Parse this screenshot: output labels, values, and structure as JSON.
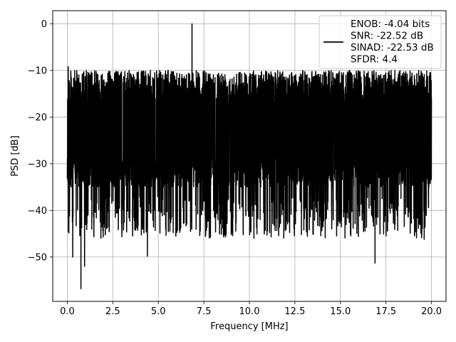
{
  "chart_data": {
    "type": "line",
    "xlabel": "Frequency [MHz]",
    "ylabel": "PSD [dB]",
    "xlim": [
      -0.8,
      20.8
    ],
    "ylim": [
      -59.5,
      2.8
    ],
    "xticks": [
      0.0,
      2.5,
      5.0,
      7.5,
      10.0,
      12.5,
      15.0,
      17.5,
      20.0
    ],
    "xtick_labels": [
      "0.0",
      "2.5",
      "5.0",
      "7.5",
      "10.0",
      "12.5",
      "15.0",
      "17.5",
      "20.0"
    ],
    "yticks": [
      0,
      -10,
      -20,
      -30,
      -40,
      -50
    ],
    "ytick_labels": [
      "0",
      "−10",
      "−20",
      "−30",
      "−40",
      "−50"
    ],
    "grid": true,
    "legend_position": "top-right",
    "line_color": "#000000",
    "series": [
      {
        "legend_lines": [
          "ENOB: -4.04 bits",
          "SNR: -22.52 dB",
          "SINAD: -22.53 dB",
          "SFDR: 4.4"
        ],
        "noise_band_db": [
          -35,
          -10
        ],
        "x_range_mhz": [
          0,
          20
        ],
        "spur": {
          "x": 6.85,
          "y": 0
        },
        "dips": [
          {
            "x": 0.3,
            "y": -50
          },
          {
            "x": 0.75,
            "y": -56.8
          },
          {
            "x": 0.95,
            "y": -52
          },
          {
            "x": 4.4,
            "y": -49.8
          },
          {
            "x": 7.6,
            "y": -45.3
          },
          {
            "x": 16.9,
            "y": -51.3
          },
          {
            "x": 19.6,
            "y": -46.2
          }
        ],
        "peaks_near_start": [
          {
            "x": 0.05,
            "y": -9.2
          }
        ]
      }
    ]
  }
}
